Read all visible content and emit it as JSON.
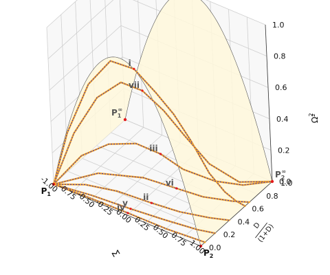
{
  "chart_data": {
    "type": "line",
    "projection": "3d",
    "axes": {
      "x": {
        "label": "Σ",
        "range": [
          -1.0,
          1.0
        ],
        "ticks": [
          "-1.00",
          "-0.75",
          "-0.50",
          "-0.25",
          "0.00",
          "0.25",
          "0.50",
          "0.75",
          "1.00"
        ]
      },
      "y": {
        "label": "D/(1+D)",
        "label_numerator": "D",
        "label_denominator": "(1+D)",
        "range": [
          0.0,
          1.0
        ],
        "ticks": [
          "0.0",
          "0.2",
          "0.4",
          "0.6",
          "0.8",
          "1.0"
        ]
      },
      "z": {
        "label": "Ω²",
        "range": [
          0.0,
          1.0
        ],
        "ticks": [
          "0.0",
          "0.2",
          "0.4",
          "0.6",
          "0.8",
          "1.0"
        ]
      }
    },
    "grid": true,
    "surface": {
      "description": "constraint boundary Ω² = 1 − Σ²",
      "color": "#fff8dc",
      "edge_color": "#555555",
      "profile": [
        {
          "sigma": -1.0,
          "omega2": 0.0
        },
        {
          "sigma": -0.5,
          "omega2": 0.75
        },
        {
          "sigma": 0.0,
          "omega2": 1.0
        },
        {
          "sigma": 0.5,
          "omega2": 0.75
        },
        {
          "sigma": 1.0,
          "omega2": 0.0
        }
      ]
    },
    "points": [
      {
        "label": "P",
        "sub": "1",
        "sup": "",
        "x": -1.0,
        "y": 0.0,
        "z": 0.0
      },
      {
        "label": "P",
        "sub": "2",
        "sup": "",
        "x": 1.0,
        "y": 0.0,
        "z": 0.0
      },
      {
        "label": "P",
        "sub": "1",
        "sup": "∞",
        "x": -1.0,
        "y": 1.0,
        "z": 0.0
      },
      {
        "label": "P",
        "sub": "2",
        "sup": "∞",
        "x": 1.0,
        "y": 1.0,
        "z": 0.0
      }
    ],
    "series": [
      {
        "label": "i",
        "points": [
          {
            "x": -1.0,
            "y": 0.0,
            "z": 0.0
          },
          {
            "x": -0.8,
            "y": 0.02,
            "z": 0.36
          },
          {
            "x": -0.5,
            "y": 0.04,
            "z": 0.72
          },
          {
            "x": -0.2,
            "y": 0.06,
            "z": 0.92
          },
          {
            "x": 0.1,
            "y": 0.08,
            "z": 0.92
          },
          {
            "x": 0.35,
            "y": 0.12,
            "z": 0.8
          },
          {
            "x": 0.5,
            "y": 0.2,
            "z": 0.66
          },
          {
            "x": 0.6,
            "y": 0.32,
            "z": 0.46
          },
          {
            "x": 0.7,
            "y": 0.45,
            "z": 0.22
          },
          {
            "x": 0.8,
            "y": 0.55,
            "z": 0.08
          },
          {
            "x": 0.9,
            "y": 0.6,
            "z": 0.02
          },
          {
            "x": 1.0,
            "y": 0.62,
            "z": 0.0
          }
        ]
      },
      {
        "label": "vii",
        "points": [
          {
            "x": -1.0,
            "y": 0.0,
            "z": 0.0
          },
          {
            "x": -0.75,
            "y": 0.06,
            "z": 0.35
          },
          {
            "x": -0.45,
            "y": 0.1,
            "z": 0.62
          },
          {
            "x": -0.15,
            "y": 0.14,
            "z": 0.76
          },
          {
            "x": 0.1,
            "y": 0.18,
            "z": 0.74
          },
          {
            "x": 0.3,
            "y": 0.26,
            "z": 0.62
          },
          {
            "x": 0.45,
            "y": 0.38,
            "z": 0.44
          },
          {
            "x": 0.6,
            "y": 0.55,
            "z": 0.22
          },
          {
            "x": 0.8,
            "y": 0.75,
            "z": 0.06
          },
          {
            "x": 1.0,
            "y": 1.0,
            "z": 0.0
          }
        ]
      },
      {
        "label": "iii",
        "points": [
          {
            "x": -1.0,
            "y": 0.0,
            "z": 0.0
          },
          {
            "x": -0.7,
            "y": 0.1,
            "z": 0.2
          },
          {
            "x": -0.4,
            "y": 0.18,
            "z": 0.3
          },
          {
            "x": -0.1,
            "y": 0.26,
            "z": 0.33
          },
          {
            "x": 0.15,
            "y": 0.34,
            "z": 0.28
          },
          {
            "x": 0.35,
            "y": 0.44,
            "z": 0.18
          },
          {
            "x": 0.6,
            "y": 0.62,
            "z": 0.08
          },
          {
            "x": 0.8,
            "y": 0.8,
            "z": 0.02
          },
          {
            "x": 1.0,
            "y": 1.0,
            "z": 0.0
          }
        ]
      },
      {
        "label": "vi",
        "points": [
          {
            "x": -1.0,
            "y": 0.0,
            "z": 0.0
          },
          {
            "x": -0.5,
            "y": 0.12,
            "z": 0.12
          },
          {
            "x": 0.0,
            "y": 0.24,
            "z": 0.14
          },
          {
            "x": 0.35,
            "y": 0.34,
            "z": 0.1
          },
          {
            "x": 0.6,
            "y": 0.45,
            "z": 0.05
          },
          {
            "x": 0.85,
            "y": 0.6,
            "z": 0.01
          },
          {
            "x": 1.0,
            "y": 0.68,
            "z": 0.0
          }
        ]
      },
      {
        "label": "ii",
        "points": [
          {
            "x": -1.0,
            "y": 0.0,
            "z": 0.0
          },
          {
            "x": -0.6,
            "y": 0.04,
            "z": 0.06
          },
          {
            "x": -0.2,
            "y": 0.08,
            "z": 0.08
          },
          {
            "x": 0.2,
            "y": 0.14,
            "z": 0.06
          },
          {
            "x": 0.5,
            "y": 0.22,
            "z": 0.03
          },
          {
            "x": 0.8,
            "y": 0.32,
            "z": 0.01
          },
          {
            "x": 1.0,
            "y": 0.4,
            "z": 0.0
          }
        ]
      },
      {
        "label": "v",
        "points": [
          {
            "x": -1.0,
            "y": 0.0,
            "z": 0.0
          },
          {
            "x": -0.5,
            "y": 0.02,
            "z": 0.02
          },
          {
            "x": 0.0,
            "y": 0.05,
            "z": 0.02
          },
          {
            "x": 0.4,
            "y": 0.1,
            "z": 0.01
          },
          {
            "x": 0.8,
            "y": 0.16,
            "z": 0.0
          },
          {
            "x": 1.0,
            "y": 0.2,
            "z": 0.0
          }
        ]
      },
      {
        "label": "iv",
        "points": [
          {
            "x": -1.0,
            "y": 0.0,
            "z": 0.0
          },
          {
            "x": -0.5,
            "y": 0.0,
            "z": 0.01
          },
          {
            "x": 0.0,
            "y": 0.01,
            "z": 0.01
          },
          {
            "x": 0.5,
            "y": 0.03,
            "z": 0.0
          },
          {
            "x": 1.0,
            "y": 0.06,
            "z": 0.0
          }
        ]
      }
    ],
    "style": {
      "numerical_color": "#1f1fcc",
      "approx_color": "#f4a52a",
      "marker_color": "#e41a1c",
      "label_color": "#555555"
    }
  }
}
